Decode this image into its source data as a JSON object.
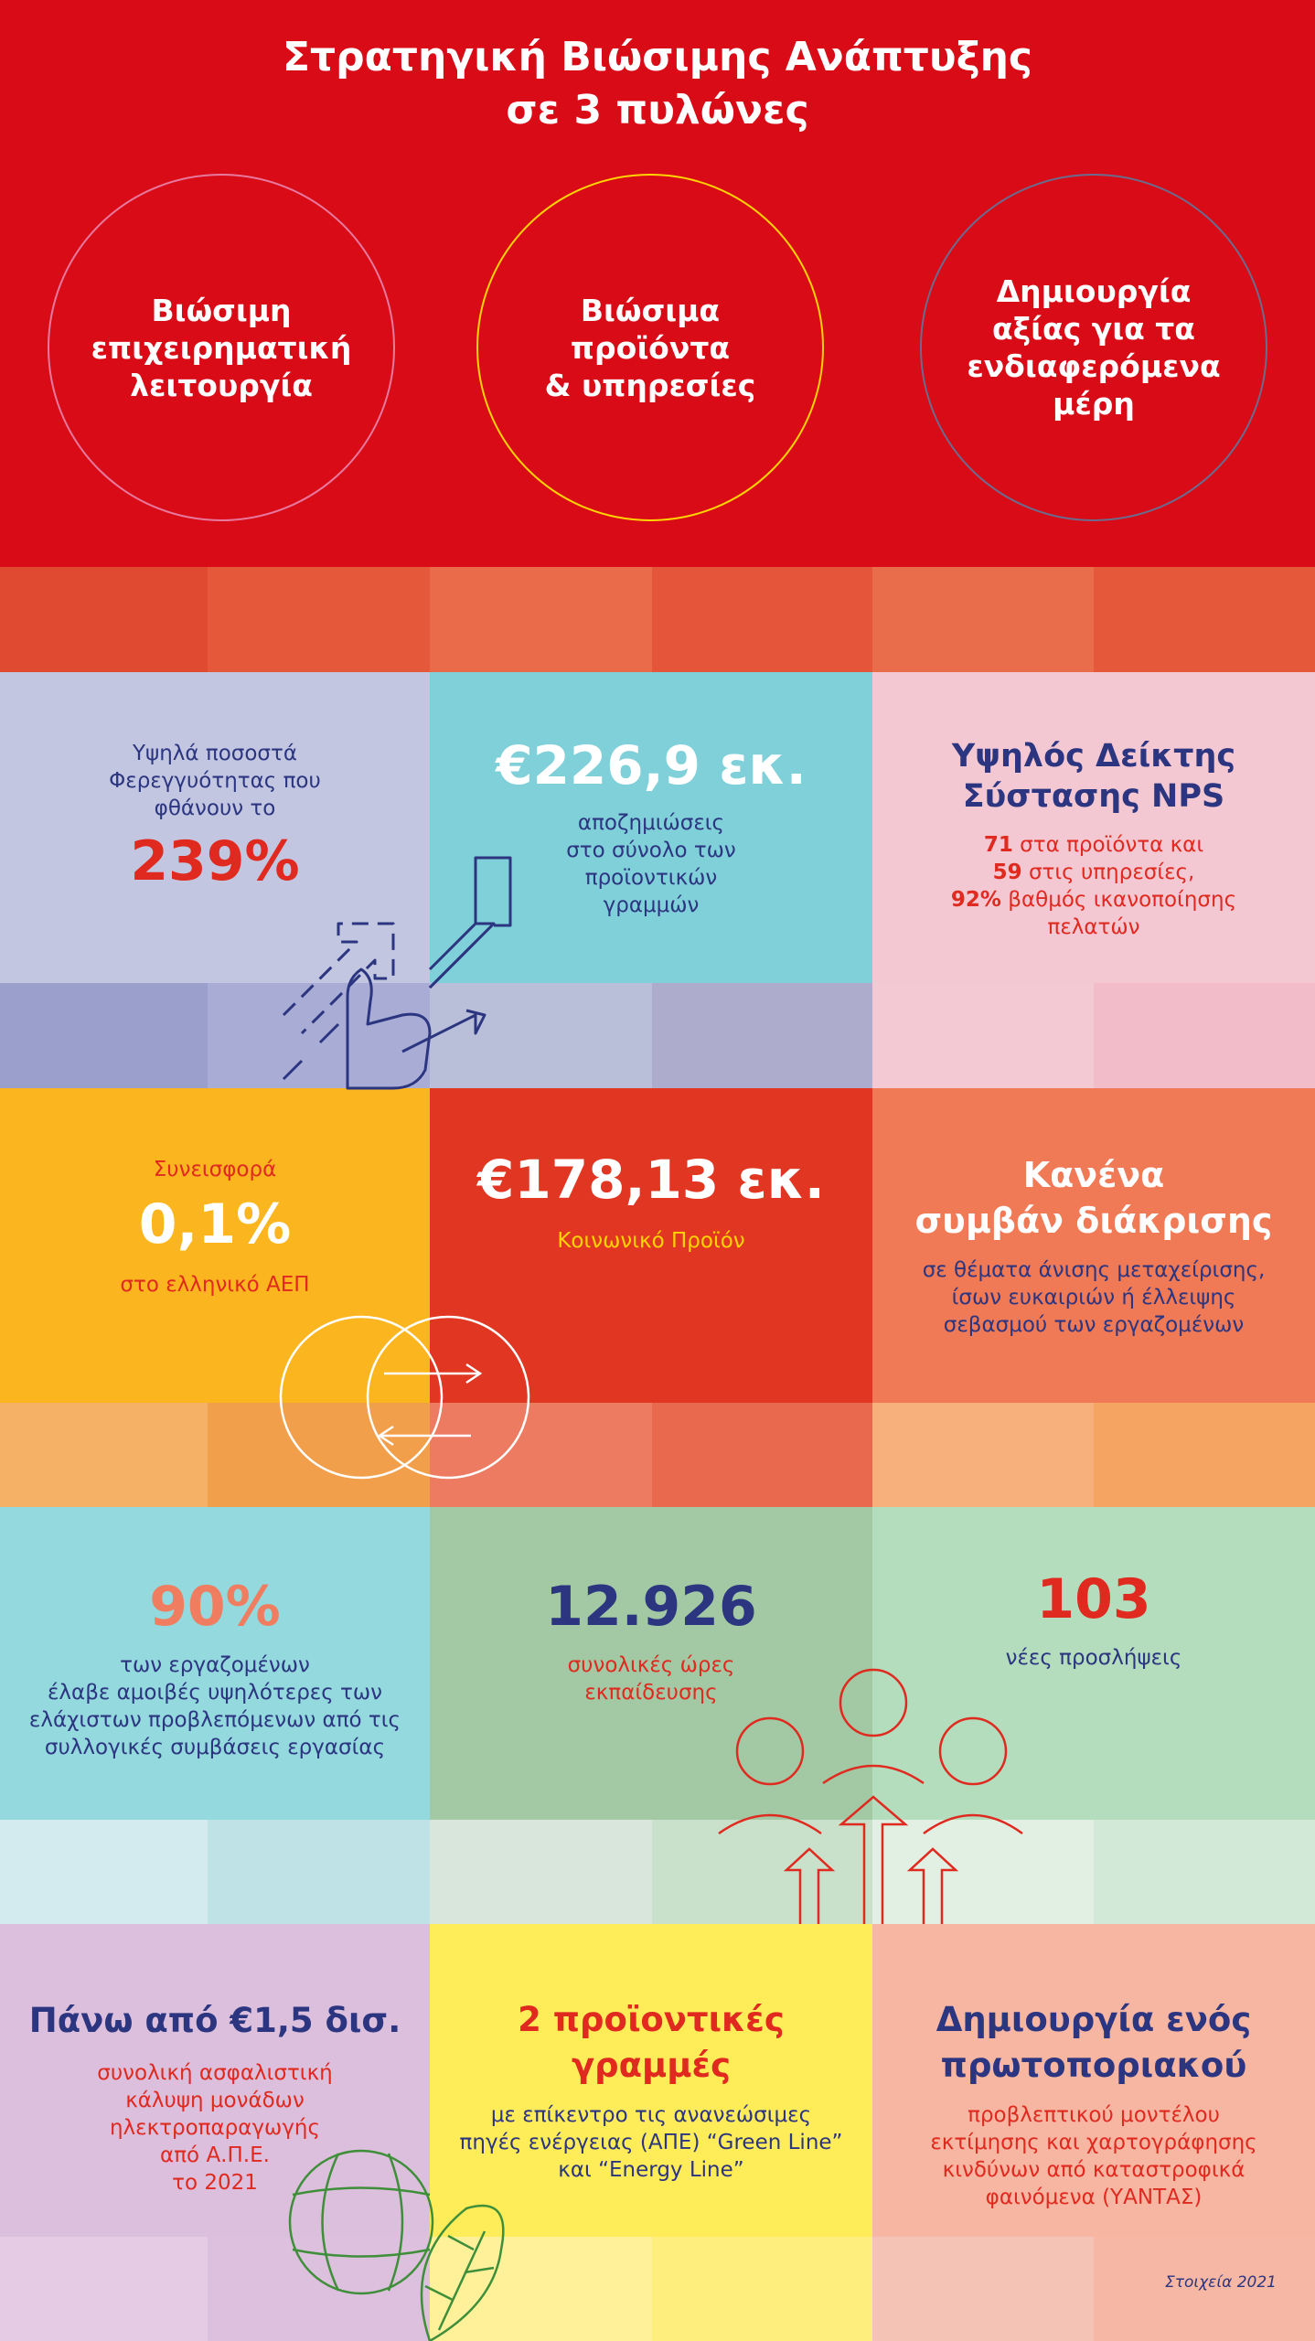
{
  "header": {
    "title_line1": "Στρατηγική Βιώσιμης Ανάπτυξης",
    "title_line2": "σε 3 πυλώνες",
    "pillars": [
      {
        "line1": "Βιώσιμη",
        "line2": "επιχειρηματική",
        "line3": "λειτουργία",
        "line4": ""
      },
      {
        "line1": "Βιώσιμα",
        "line2": "προϊόντα",
        "line3": "& υπηρεσίες",
        "line4": ""
      },
      {
        "line1": "Δημιουργία",
        "line2": "αξίας για τα",
        "line3": "ενδιαφερόμενα",
        "line4": "μέρη"
      }
    ]
  },
  "stats": {
    "reliability": {
      "line1": "Υψηλά ποσοστά",
      "line2": "Φερεγγυότητας που",
      "line3": "φθάνουν το",
      "value": "239%"
    },
    "claims": {
      "value": "€226,9 εκ.",
      "line1": "αποζημιώσεις",
      "line2": "στο σύνολο των",
      "line3": "προϊοντικών",
      "line4": "γραμμών"
    },
    "nps": {
      "title1": "Υψηλός Δείκτης",
      "title2": "Σύστασης NPS",
      "n1": "71",
      "t1": " στα προϊόντα και",
      "n2": "59",
      "t2": " στις υπηρεσίες,",
      "n3": "92%",
      "t3": " βαθμός ικανοποίησης",
      "t4": "πελατών"
    },
    "gdp": {
      "label": "Συνεισφορά",
      "value": "0,1%",
      "sub": "στο ελληνικό ΑΕΠ"
    },
    "social": {
      "value": "€178,13 εκ.",
      "sub": "Κοινωνικό Προϊόν"
    },
    "discrimination": {
      "title1": "Κανένα",
      "title2": "συμβάν διάκρισης",
      "line1": "σε θέματα άνισης μεταχείρισης,",
      "line2": "ίσων ευκαιριών ή έλλειψης",
      "line3": "σεβασμού των εργαζομένων"
    },
    "employees": {
      "value": "90%",
      "line1": "των εργαζομένων",
      "line2": "έλαβε αμοιβές υψηλότερες των",
      "line3": "ελάχιστων προβλεπόμενων από τις",
      "line4": "συλλογικές συμβάσεις εργασίας"
    },
    "training": {
      "value": "12.926",
      "line1": "συνολικές ώρες",
      "line2": "εκπαίδευσης"
    },
    "hires": {
      "value": "103",
      "line1": "νέες προσλήψεις"
    },
    "coverage": {
      "title": "Πάνω από €1,5 δισ.",
      "line1": "συνολική ασφαλιστική",
      "line2": "κάλυψη μονάδων",
      "line3": "ηλεκτροπαραγωγής",
      "line4": "από Α.Π.Ε.",
      "line5": "το 2021"
    },
    "product_lines": {
      "title1": "2 προϊοντικές",
      "title2": "γραμμές",
      "line1": "με επίκεντρο τις ανανεώσιμες",
      "line2": "πηγές ενέργειας (ΑΠΕ) “Green Line”",
      "line3": "και “Energy Line”"
    },
    "model": {
      "title1": "Δημιουργία ενός",
      "title2": "πρωτοποριακού",
      "line1": "προβλεπτικού μοντέλου",
      "line2": "εκτίμησης και χαρτογράφησης",
      "line3": "κινδύνων από καταστροφικά",
      "line4": "φαινόμενα (ΥΑΝΤΑΣ)"
    }
  },
  "footer": {
    "note": "Στοιχεία 2021"
  },
  "colors": {
    "red": "#d90b17",
    "navy": "#2b3580",
    "accent_red": "#e0291f",
    "lavender": "#c3c6e0",
    "teal": "#7fd0d8",
    "pink": "#f4c8d2",
    "amber": "#fbb51f",
    "coral": "#f07956",
    "mint": "#a7dbbb",
    "lilac": "#dcbfdc",
    "lemon": "#ffec59",
    "peach": "#f6b6a2"
  },
  "icons": [
    "hand-arrows-icon",
    "exchange-circles-icon",
    "people-growth-icon",
    "globe-leaf-icon"
  ]
}
